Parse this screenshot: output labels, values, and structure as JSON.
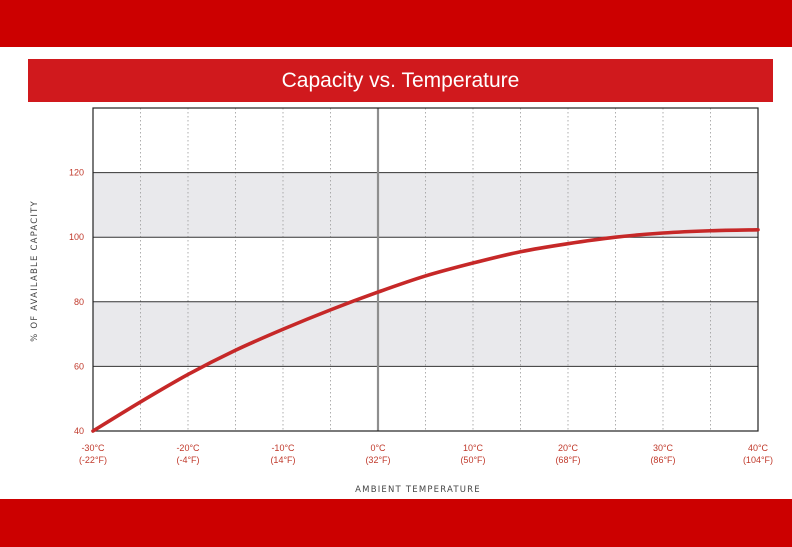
{
  "colors": {
    "brand_red": "#cc0000",
    "title_bar": "#d0191d",
    "curve": "#c62828",
    "band_fill": "#e9e9ec",
    "tick_label": "#c0392b"
  },
  "chart_data": {
    "type": "line",
    "title": "Capacity vs. Temperature",
    "xlabel": "AMBIENT TEMPERATURE",
    "ylabel": "% OF AVAILABLE CAPACITY",
    "xlim": [
      -30,
      40
    ],
    "ylim": [
      40,
      140
    ],
    "yticks": [
      40,
      60,
      80,
      100,
      120
    ],
    "xticks": [
      {
        "value": -30,
        "label": "-30°C",
        "sub": "(-22°F)"
      },
      {
        "value": -20,
        "label": "-20°C",
        "sub": "(-4°F)"
      },
      {
        "value": -10,
        "label": "-10°C",
        "sub": "(14°F)"
      },
      {
        "value": 0,
        "label": "0°C",
        "sub": "(32°F)"
      },
      {
        "value": 10,
        "label": "10°C",
        "sub": "(50°F)"
      },
      {
        "value": 20,
        "label": "20°C",
        "sub": "(68°F)"
      },
      {
        "value": 30,
        "label": "30°C",
        "sub": "(86°F)"
      },
      {
        "value": 40,
        "label": "40°C",
        "sub": "(104°F)"
      }
    ],
    "shaded_bands": [
      [
        60,
        80
      ],
      [
        100,
        120
      ]
    ],
    "vertical_reference": 0,
    "minor_gridlines": "dotted, every 5°C",
    "grid": true,
    "legend": "none",
    "series": [
      {
        "x": [
          -30,
          -25,
          -20,
          -15,
          -10,
          -5,
          0,
          5,
          10,
          15,
          20,
          25,
          30,
          35,
          40
        ],
        "y": [
          40,
          49,
          57.5,
          65,
          71.5,
          77.5,
          83,
          88,
          92,
          95.5,
          98,
          100,
          101.3,
          102,
          102.3
        ]
      }
    ]
  }
}
